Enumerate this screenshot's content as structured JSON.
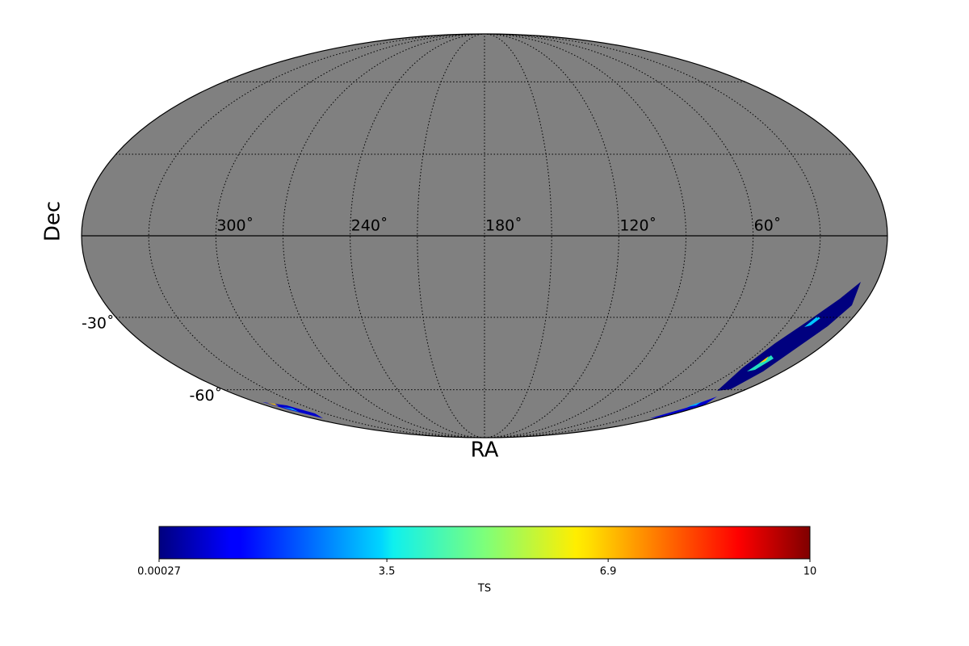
{
  "chart_data": {
    "type": "mollweide",
    "xlabel": "RA",
    "ylabel": "Dec",
    "xticks": [
      {
        "value": 300,
        "label": "300˚"
      },
      {
        "value": 240,
        "label": "240˚"
      },
      {
        "value": 180,
        "label": "180˚"
      },
      {
        "value": 120,
        "label": "120˚"
      },
      {
        "value": 60,
        "label": "60˚"
      }
    ],
    "yticks": [
      {
        "value": -30,
        "label": "-30˚"
      },
      {
        "value": -60,
        "label": "-60˚"
      }
    ],
    "background": "#808080",
    "grid": true,
    "colorbar": {
      "label": "TS",
      "lim": [
        0.00027,
        10
      ],
      "ticks": [
        0.00027,
        3.5,
        6.9,
        10
      ],
      "colormap": "jet"
    }
  }
}
